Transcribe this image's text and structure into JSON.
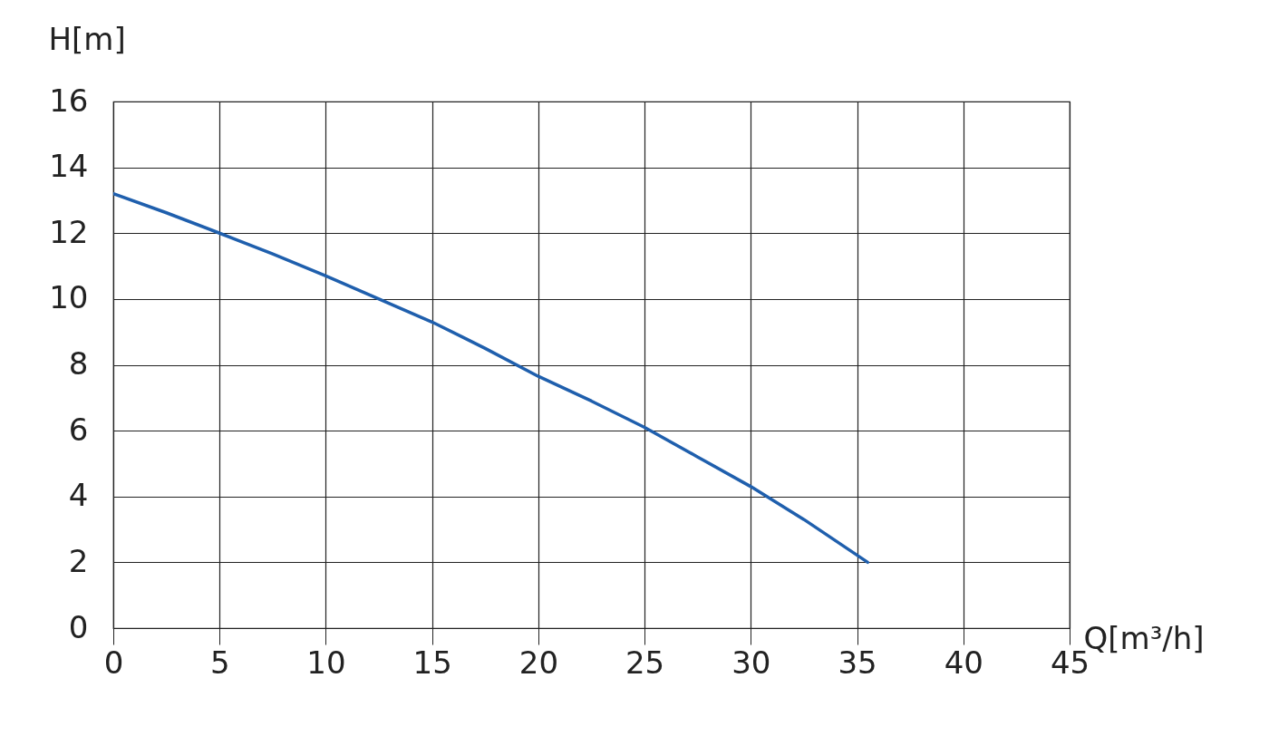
{
  "chart_data": {
    "type": "line",
    "xlabel": "Q[m³/h]",
    "ylabel": "H[m]",
    "x": [
      0,
      2.5,
      5,
      7.5,
      10,
      12.5,
      15,
      17.5,
      20,
      22.5,
      25,
      27.5,
      30,
      32.5,
      35.5
    ],
    "series": [
      {
        "color": "#1f5fad",
        "values": [
          13.2,
          12.62,
          12.0,
          11.37,
          10.7,
          10.0,
          9.3,
          8.5,
          7.65,
          6.9,
          6.1,
          5.2,
          4.3,
          3.3,
          2.0
        ]
      }
    ],
    "xlim": [
      0,
      45
    ],
    "xticks": [
      0,
      5,
      10,
      15,
      20,
      25,
      30,
      35,
      40,
      45
    ],
    "ylim": [
      0,
      16
    ],
    "yticks": [
      0,
      2,
      4,
      6,
      8,
      10,
      12,
      14,
      16
    ],
    "grid": true,
    "marker": "none",
    "line_style": "solid"
  }
}
